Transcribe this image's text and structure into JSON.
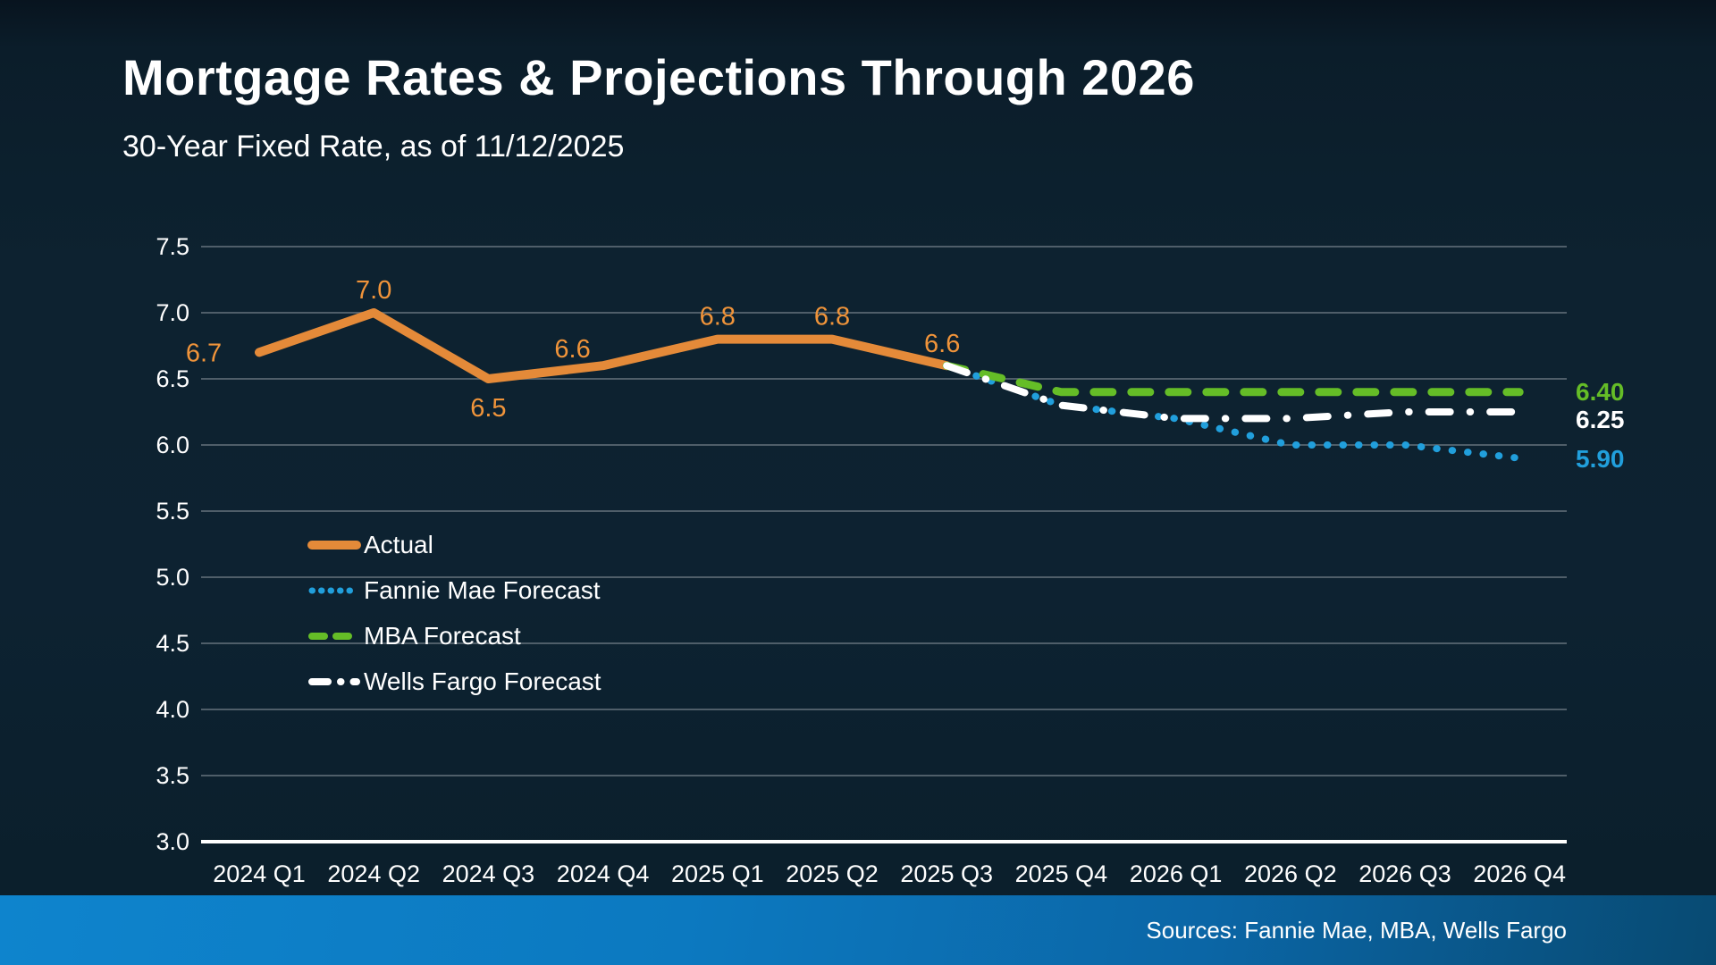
{
  "slide": {
    "title": "Mortgage Rates & Projections Through 2026",
    "subtitle": "30-Year Fixed Rate, as of 11/12/2025",
    "source_note": "Sources: Fannie Mae, MBA, Wells Fargo"
  },
  "colors": {
    "background": "#0d2231",
    "gridline": "#4f5e69",
    "axis_line": "#ffffff",
    "text": "#ffffff",
    "actual": "#e48a39",
    "actual_label": "#f0943a",
    "fannie_mae": "#219fdc",
    "mba": "#65bd27",
    "wells_fargo": "#ffffff",
    "footer_left": "#0e84cd",
    "footer_right": "#084a72"
  },
  "chart_data": {
    "type": "line",
    "title": "Mortgage Rates & Projections Through 2026",
    "subtitle": "30-Year Fixed Rate, as of 11/12/2025",
    "categories": [
      "2024 Q1",
      "2024 Q2",
      "2024 Q3",
      "2024 Q4",
      "2025 Q1",
      "2025 Q2",
      "2025 Q3",
      "2025 Q4",
      "2026 Q1",
      "2026 Q2",
      "2026 Q3",
      "2026 Q4"
    ],
    "yticks": [
      "7.5",
      "7.0",
      "6.5",
      "6.0",
      "5.5",
      "5.0",
      "4.5",
      "4.0",
      "3.5",
      "3.0"
    ],
    "ylim": [
      3.0,
      7.5
    ],
    "grid": true,
    "legend_position": "inside-left",
    "series": [
      {
        "name": "Actual",
        "style": "solid",
        "color": "#e48a39",
        "values": [
          6.7,
          7.0,
          6.5,
          6.6,
          6.8,
          6.8,
          6.6,
          null,
          null,
          null,
          null,
          null
        ],
        "point_labels": [
          "6.7",
          "7.0",
          "6.5",
          "6.6",
          "6.8",
          "6.8",
          "6.6"
        ]
      },
      {
        "name": "Fannie Mae Forecast",
        "style": "dotted",
        "color": "#219fdc",
        "values": [
          null,
          null,
          null,
          null,
          null,
          null,
          6.6,
          6.3,
          6.2,
          6.0,
          6.0,
          5.9
        ],
        "end_label": "5.90"
      },
      {
        "name": "MBA Forecast",
        "style": "dashed",
        "color": "#65bd27",
        "values": [
          null,
          null,
          null,
          null,
          null,
          null,
          6.6,
          6.4,
          6.4,
          6.4,
          6.4,
          6.4
        ],
        "end_label": "6.40"
      },
      {
        "name": "Wells Fargo Forecast",
        "style": "dashdot",
        "color": "#ffffff",
        "values": [
          null,
          null,
          null,
          null,
          null,
          null,
          6.6,
          6.3,
          6.2,
          6.2,
          6.25,
          6.25
        ],
        "end_label": "6.25"
      }
    ]
  }
}
